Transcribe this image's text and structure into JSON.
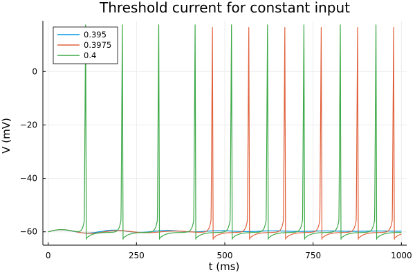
{
  "chart_data": {
    "type": "line",
    "title": "Threshold current for constant input",
    "xlabel": "t (ms)",
    "ylabel": "V (mV)",
    "xlim": [
      -15,
      1015
    ],
    "ylim": [
      -65,
      19
    ],
    "xticks": [
      0,
      250,
      500,
      750,
      1000
    ],
    "yticks": [
      -60,
      -40,
      -20,
      0
    ],
    "grid": true,
    "legend": "top-left",
    "series": [
      {
        "name": "0.395",
        "color": "#0099e0",
        "rest": -60,
        "spikes": [],
        "subthreshold_oscillation": true
      },
      {
        "name": "0.3975",
        "color": "#e0603a",
        "rest": -60,
        "peak": 16.5,
        "trough": -62.8,
        "spikes": [
          465,
          568,
          670,
          773,
          876,
          978
        ]
      },
      {
        "name": "0.4",
        "color": "#3aa845",
        "rest": -60,
        "peak": 17.5,
        "trough": -62.8,
        "spikes": [
          106,
          210,
          313,
          416,
          519,
          621,
          724,
          827,
          928
        ]
      }
    ]
  }
}
